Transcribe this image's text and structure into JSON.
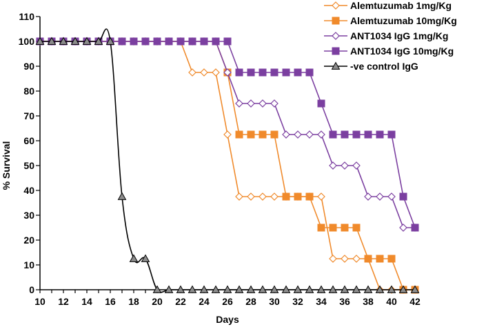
{
  "chart_data": {
    "type": "line",
    "title": "",
    "xlabel": "Days",
    "ylabel": "% Survival",
    "xlim": [
      10,
      42
    ],
    "ylim": [
      0,
      110
    ],
    "x_ticks": [
      10,
      12,
      14,
      16,
      18,
      20,
      22,
      24,
      26,
      28,
      30,
      32,
      34,
      36,
      38,
      40,
      42
    ],
    "y_ticks": [
      0,
      10,
      20,
      30,
      40,
      50,
      60,
      70,
      80,
      90,
      100,
      110
    ],
    "x_tick_labels": [
      "10",
      "12",
      "14",
      "16",
      "18",
      "20",
      "22",
      "24",
      "26",
      "28",
      "30",
      "32",
      "34",
      "36",
      "38",
      "40",
      "42"
    ],
    "y_tick_labels": [
      "0",
      "10",
      "20",
      "30",
      "40",
      "50",
      "60",
      "70",
      "80",
      "90",
      "100",
      "110"
    ],
    "legend_position": "top-right",
    "series": [
      {
        "name": "Alemtuzumab 1mg/Kg",
        "color": "#F08A2B",
        "marker": "diamond-open",
        "x": [
          10,
          11,
          12,
          13,
          14,
          15,
          16,
          17,
          18,
          19,
          20,
          21,
          22,
          23,
          24,
          25,
          26,
          27,
          28,
          29,
          30,
          31,
          32,
          33,
          34,
          35,
          36,
          37,
          38,
          39,
          40,
          41,
          42
        ],
        "values": [
          100,
          100,
          100,
          100,
          100,
          100,
          100,
          100,
          100,
          100,
          100,
          100,
          100,
          87.5,
          87.5,
          87.5,
          62.5,
          37.5,
          37.5,
          37.5,
          37.5,
          37.5,
          37.5,
          37.5,
          37.5,
          12.5,
          12.5,
          12.5,
          12.5,
          0,
          0,
          0,
          0
        ]
      },
      {
        "name": "Alemtuzumab 10mg/Kg",
        "color": "#F08A2B",
        "marker": "square-filled",
        "x": [
          10,
          11,
          12,
          13,
          14,
          15,
          16,
          17,
          18,
          19,
          20,
          21,
          22,
          23,
          24,
          25,
          26,
          27,
          28,
          29,
          30,
          31,
          32,
          33,
          34,
          35,
          36,
          37,
          38,
          39,
          40,
          41,
          42
        ],
        "values": [
          100,
          100,
          100,
          100,
          100,
          100,
          100,
          100,
          100,
          100,
          100,
          100,
          100,
          100,
          100,
          100,
          87.5,
          62.5,
          62.5,
          62.5,
          62.5,
          37.5,
          37.5,
          37.5,
          25,
          25,
          25,
          25,
          12.5,
          12.5,
          12.5,
          0,
          0
        ]
      },
      {
        "name": "ANT1034 IgG 1mg/Kg",
        "color": "#7B3FA0",
        "marker": "diamond-open",
        "x": [
          10,
          11,
          12,
          13,
          14,
          15,
          16,
          17,
          18,
          19,
          20,
          21,
          22,
          23,
          24,
          25,
          26,
          27,
          28,
          29,
          30,
          31,
          32,
          33,
          34,
          35,
          36,
          37,
          38,
          39,
          40,
          41,
          42
        ],
        "values": [
          100,
          100,
          100,
          100,
          100,
          100,
          100,
          100,
          100,
          100,
          100,
          100,
          100,
          100,
          100,
          100,
          87.5,
          75,
          75,
          75,
          75,
          62.5,
          62.5,
          62.5,
          62.5,
          50,
          50,
          50,
          37.5,
          37.5,
          37.5,
          25,
          25
        ]
      },
      {
        "name": "ANT1034 IgG 10mg/Kg",
        "color": "#7B3FA0",
        "marker": "square-filled",
        "x": [
          10,
          11,
          12,
          13,
          14,
          15,
          16,
          17,
          18,
          19,
          20,
          21,
          22,
          23,
          24,
          25,
          26,
          27,
          28,
          29,
          30,
          31,
          32,
          33,
          34,
          35,
          36,
          37,
          38,
          39,
          40,
          41,
          42
        ],
        "values": [
          100,
          100,
          100,
          100,
          100,
          100,
          100,
          100,
          100,
          100,
          100,
          100,
          100,
          100,
          100,
          100,
          100,
          87.5,
          87.5,
          87.5,
          87.5,
          87.5,
          87.5,
          87.5,
          75,
          62.5,
          62.5,
          62.5,
          62.5,
          62.5,
          62.5,
          37.5,
          25
        ]
      },
      {
        "name": "-ve control IgG",
        "color": "#000000",
        "marker": "triangle-gray",
        "x": [
          10,
          11,
          12,
          13,
          14,
          15,
          16,
          17,
          18,
          19,
          20,
          21,
          22,
          23,
          24,
          25,
          26,
          27,
          28,
          29,
          30,
          31,
          32,
          33,
          34,
          35,
          36,
          37,
          38,
          39,
          40,
          41,
          42
        ],
        "values": [
          100,
          100,
          100,
          100,
          100,
          100,
          100,
          37.5,
          12.5,
          12.5,
          0,
          0,
          0,
          0,
          0,
          0,
          0,
          0,
          0,
          0,
          0,
          0,
          0,
          0,
          0,
          0,
          0,
          0,
          0,
          0,
          0,
          0,
          0
        ]
      }
    ]
  }
}
